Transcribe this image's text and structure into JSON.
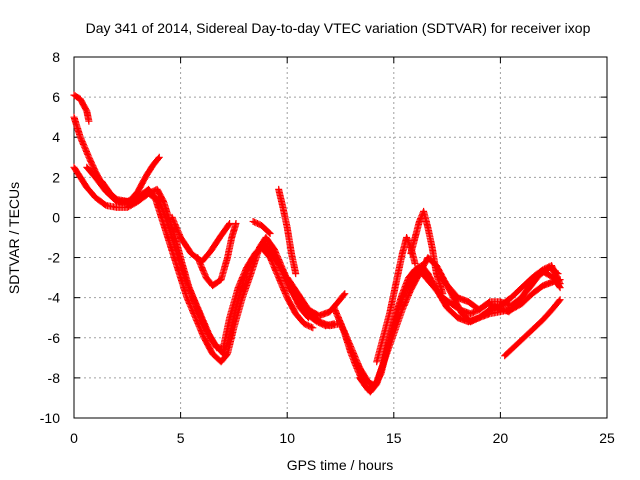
{
  "chart_data": {
    "type": "scatter",
    "title": "Day 341 of 2014, Sidereal Day-to-day VTEC variation (SDTVAR) for receiver ixop",
    "xlabel": "GPS time / hours",
    "ylabel": "SDTVAR / TECUs",
    "xlim": [
      0,
      25
    ],
    "ylim": [
      -10,
      8
    ],
    "x_ticks": [
      0,
      5,
      10,
      15,
      20,
      25
    ],
    "y_ticks": [
      -10,
      -8,
      -6,
      -4,
      -2,
      0,
      2,
      4,
      6,
      8
    ],
    "grid": true,
    "marker": "+",
    "series_color": "#ff0000",
    "series": [
      {
        "name": "track-1",
        "points": [
          [
            0.0,
            6.1
          ],
          [
            0.3,
            5.9
          ],
          [
            0.6,
            5.3
          ],
          [
            0.7,
            4.8
          ]
        ]
      },
      {
        "name": "track-2",
        "points": [
          [
            0.0,
            5.0
          ],
          [
            0.3,
            4.0
          ],
          [
            0.7,
            3.0
          ],
          [
            1.0,
            2.3
          ],
          [
            1.5,
            1.3
          ],
          [
            2.0,
            0.9
          ],
          [
            2.5,
            0.8
          ],
          [
            3.0,
            1.0
          ],
          [
            3.5,
            1.2
          ],
          [
            4.0,
            0.8
          ],
          [
            4.3,
            0.0
          ],
          [
            4.6,
            -1.0
          ],
          [
            4.9,
            -2.0
          ],
          [
            5.2,
            -3.0
          ],
          [
            5.6,
            -4.0
          ],
          [
            6.0,
            -5.0
          ],
          [
            6.4,
            -6.0
          ],
          [
            6.7,
            -6.5
          ],
          [
            7.0,
            -6.5
          ],
          [
            7.3,
            -5.0
          ],
          [
            7.7,
            -3.5
          ],
          [
            8.1,
            -2.5
          ],
          [
            8.5,
            -1.8
          ],
          [
            8.9,
            -1.3
          ],
          [
            9.3,
            -1.8
          ],
          [
            9.7,
            -2.5
          ],
          [
            10.1,
            -3.5
          ],
          [
            10.5,
            -4.2
          ],
          [
            10.9,
            -4.8
          ],
          [
            11.4,
            -5.2
          ],
          [
            11.8,
            -5.4
          ],
          [
            12.2,
            -5.3
          ]
        ]
      },
      {
        "name": "track-3",
        "points": [
          [
            0.0,
            2.5
          ],
          [
            0.3,
            2.0
          ],
          [
            0.6,
            1.5
          ],
          [
            1.0,
            1.0
          ],
          [
            1.5,
            0.6
          ],
          [
            2.0,
            0.5
          ],
          [
            2.5,
            0.5
          ],
          [
            3.0,
            0.8
          ],
          [
            3.5,
            1.2
          ],
          [
            3.9,
            1.4
          ],
          [
            4.2,
            0.8
          ],
          [
            4.5,
            -0.2
          ],
          [
            4.8,
            -1.2
          ],
          [
            5.1,
            -2.4
          ],
          [
            5.4,
            -3.5
          ],
          [
            5.8,
            -4.6
          ],
          [
            6.2,
            -5.6
          ],
          [
            6.6,
            -6.3
          ],
          [
            7.0,
            -6.8
          ],
          [
            7.3,
            -6.0
          ],
          [
            7.6,
            -4.5
          ],
          [
            8.0,
            -3.0
          ],
          [
            8.4,
            -2.0
          ],
          [
            8.8,
            -1.5
          ],
          [
            9.2,
            -2.0
          ],
          [
            9.6,
            -3.0
          ],
          [
            10.0,
            -4.0
          ],
          [
            10.4,
            -4.8
          ],
          [
            10.8,
            -5.3
          ],
          [
            11.2,
            -5.5
          ]
        ]
      },
      {
        "name": "track-4",
        "points": [
          [
            0.6,
            2.5
          ],
          [
            1.0,
            2.0
          ],
          [
            1.5,
            1.3
          ],
          [
            2.0,
            0.8
          ],
          [
            2.5,
            0.7
          ],
          [
            3.0,
            1.0
          ],
          [
            3.5,
            1.4
          ],
          [
            3.8,
            1.0
          ],
          [
            4.1,
            0.0
          ],
          [
            4.4,
            -1.0
          ],
          [
            4.7,
            -2.0
          ],
          [
            5.0,
            -3.0
          ],
          [
            5.3,
            -4.0
          ],
          [
            5.7,
            -5.0
          ],
          [
            6.1,
            -6.0
          ],
          [
            6.5,
            -6.8
          ],
          [
            6.9,
            -7.2
          ],
          [
            7.2,
            -6.8
          ],
          [
            7.5,
            -5.5
          ],
          [
            7.9,
            -4.0
          ],
          [
            8.3,
            -2.8
          ],
          [
            8.7,
            -1.5
          ],
          [
            9.0,
            -1.0
          ],
          [
            9.4,
            -1.6
          ],
          [
            9.8,
            -2.6
          ],
          [
            10.2,
            -3.6
          ],
          [
            10.6,
            -4.5
          ],
          [
            11.0,
            -5.0
          ]
        ]
      },
      {
        "name": "track-5",
        "points": [
          [
            1.3,
            1.8
          ],
          [
            1.7,
            1.2
          ],
          [
            2.1,
            0.8
          ],
          [
            2.6,
            0.8
          ],
          [
            3.0,
            1.3
          ],
          [
            3.4,
            2.1
          ],
          [
            3.7,
            2.6
          ],
          [
            4.0,
            3.0
          ]
        ]
      },
      {
        "name": "track-6",
        "points": [
          [
            4.6,
            0.0
          ],
          [
            5.0,
            -1.0
          ],
          [
            5.5,
            -1.8
          ],
          [
            6.0,
            -2.2
          ],
          [
            6.4,
            -1.7
          ],
          [
            6.9,
            -0.9
          ],
          [
            7.3,
            -0.3
          ]
        ]
      },
      {
        "name": "track-7",
        "points": [
          [
            5.8,
            -2.0
          ],
          [
            6.2,
            -3.0
          ],
          [
            6.5,
            -3.4
          ],
          [
            6.9,
            -3.1
          ],
          [
            7.2,
            -2.0
          ],
          [
            7.4,
            -1.0
          ],
          [
            7.6,
            -0.3
          ]
        ]
      },
      {
        "name": "track-8",
        "points": [
          [
            8.4,
            -0.2
          ],
          [
            8.8,
            -0.4
          ],
          [
            9.2,
            -0.8
          ]
        ]
      },
      {
        "name": "track-9",
        "points": [
          [
            9.6,
            1.4
          ],
          [
            9.8,
            0.5
          ],
          [
            10.0,
            -0.5
          ],
          [
            10.2,
            -1.8
          ],
          [
            10.4,
            -2.8
          ]
        ]
      },
      {
        "name": "track-10",
        "points": [
          [
            10.0,
            -3.0
          ],
          [
            10.5,
            -3.8
          ],
          [
            11.0,
            -4.6
          ],
          [
            11.5,
            -5.2
          ],
          [
            12.0,
            -5.4
          ],
          [
            12.5,
            -5.3
          ]
        ]
      },
      {
        "name": "track-11",
        "points": [
          [
            11.0,
            -4.6
          ],
          [
            11.5,
            -4.9
          ],
          [
            12.0,
            -4.7
          ],
          [
            12.4,
            -4.2
          ],
          [
            12.7,
            -3.8
          ]
        ]
      },
      {
        "name": "track-12",
        "points": [
          [
            12.4,
            -5.0
          ],
          [
            12.7,
            -5.8
          ],
          [
            13.0,
            -6.8
          ],
          [
            13.3,
            -7.6
          ],
          [
            13.6,
            -8.3
          ],
          [
            13.9,
            -8.7
          ],
          [
            14.2,
            -8.3
          ],
          [
            14.5,
            -7.3
          ],
          [
            14.8,
            -6.0
          ],
          [
            15.1,
            -4.8
          ],
          [
            15.4,
            -3.8
          ],
          [
            15.7,
            -3.0
          ],
          [
            16.0,
            -2.6
          ],
          [
            16.3,
            -2.4
          ],
          [
            16.6,
            -2.8
          ],
          [
            17.0,
            -3.6
          ],
          [
            17.5,
            -4.5
          ],
          [
            18.0,
            -5.0
          ],
          [
            18.5,
            -5.2
          ],
          [
            19.0,
            -5.0
          ],
          [
            19.5,
            -4.8
          ],
          [
            20.0,
            -4.7
          ],
          [
            20.5,
            -4.6
          ],
          [
            21.0,
            -4.3
          ],
          [
            21.5,
            -3.8
          ],
          [
            22.0,
            -3.4
          ],
          [
            22.5,
            -3.2
          ],
          [
            22.8,
            -3.1
          ]
        ]
      },
      {
        "name": "track-13",
        "points": [
          [
            12.2,
            -4.5
          ],
          [
            12.6,
            -5.5
          ],
          [
            13.0,
            -6.5
          ],
          [
            13.4,
            -7.5
          ],
          [
            13.8,
            -8.2
          ],
          [
            14.1,
            -8.4
          ],
          [
            14.4,
            -7.8
          ],
          [
            14.7,
            -6.5
          ],
          [
            15.0,
            -5.3
          ],
          [
            15.3,
            -4.3
          ],
          [
            15.6,
            -3.5
          ],
          [
            15.9,
            -2.9
          ],
          [
            16.2,
            -2.6
          ],
          [
            16.5,
            -3.0
          ],
          [
            16.9,
            -3.5
          ],
          [
            17.3,
            -4.0
          ],
          [
            17.7,
            -4.3
          ],
          [
            18.1,
            -4.6
          ],
          [
            18.6,
            -4.8
          ],
          [
            19.0,
            -4.6
          ],
          [
            19.4,
            -4.3
          ],
          [
            19.9,
            -4.5
          ],
          [
            20.4,
            -4.7
          ],
          [
            20.8,
            -4.2
          ],
          [
            21.3,
            -3.6
          ],
          [
            21.8,
            -2.9
          ],
          [
            22.3,
            -2.5
          ],
          [
            22.7,
            -2.8
          ]
        ]
      },
      {
        "name": "track-14",
        "points": [
          [
            13.4,
            -8.0
          ],
          [
            13.8,
            -8.6
          ],
          [
            14.2,
            -8.2
          ],
          [
            14.6,
            -7.0
          ],
          [
            15.0,
            -5.8
          ],
          [
            15.4,
            -4.6
          ],
          [
            15.8,
            -3.6
          ],
          [
            16.2,
            -2.8
          ],
          [
            16.6,
            -2.0
          ],
          [
            17.0,
            -2.4
          ],
          [
            17.4,
            -3.2
          ],
          [
            17.8,
            -4.0
          ],
          [
            18.2,
            -4.8
          ],
          [
            18.6,
            -5.2
          ],
          [
            19.0,
            -5.0
          ],
          [
            19.5,
            -4.6
          ],
          [
            20.0,
            -4.4
          ],
          [
            20.5,
            -4.0
          ],
          [
            21.0,
            -3.5
          ],
          [
            21.5,
            -3.0
          ],
          [
            22.0,
            -2.6
          ],
          [
            22.4,
            -2.4
          ],
          [
            22.8,
            -3.3
          ]
        ]
      },
      {
        "name": "track-15",
        "points": [
          [
            14.2,
            -7.2
          ],
          [
            14.5,
            -6.0
          ],
          [
            14.8,
            -4.8
          ],
          [
            15.0,
            -3.8
          ],
          [
            15.2,
            -2.8
          ],
          [
            15.4,
            -1.8
          ],
          [
            15.6,
            -1.0
          ],
          [
            15.8,
            -1.5
          ],
          [
            16.0,
            -2.3
          ]
        ]
      },
      {
        "name": "track-16",
        "points": [
          [
            15.8,
            -1.8
          ],
          [
            16.0,
            -1.0
          ],
          [
            16.2,
            -0.2
          ],
          [
            16.4,
            0.3
          ],
          [
            16.6,
            -0.5
          ],
          [
            16.8,
            -1.5
          ],
          [
            17.0,
            -2.8
          ],
          [
            17.3,
            -3.8
          ]
        ]
      },
      {
        "name": "track-17",
        "points": [
          [
            17.2,
            -3.0
          ],
          [
            17.6,
            -3.5
          ],
          [
            18.0,
            -4.0
          ],
          [
            18.5,
            -4.2
          ],
          [
            19.0,
            -4.6
          ],
          [
            19.5,
            -4.2
          ],
          [
            20.0,
            -4.2
          ],
          [
            20.5,
            -4.4
          ],
          [
            21.0,
            -4.0
          ],
          [
            21.5,
            -3.2
          ],
          [
            22.0,
            -2.7
          ],
          [
            22.5,
            -3.0
          ],
          [
            22.8,
            -3.5
          ]
        ]
      },
      {
        "name": "track-18",
        "points": [
          [
            20.2,
            -6.9
          ],
          [
            20.6,
            -6.5
          ],
          [
            21.0,
            -6.1
          ],
          [
            21.5,
            -5.6
          ],
          [
            22.0,
            -5.1
          ],
          [
            22.5,
            -4.5
          ],
          [
            22.8,
            -4.1
          ]
        ]
      }
    ]
  }
}
